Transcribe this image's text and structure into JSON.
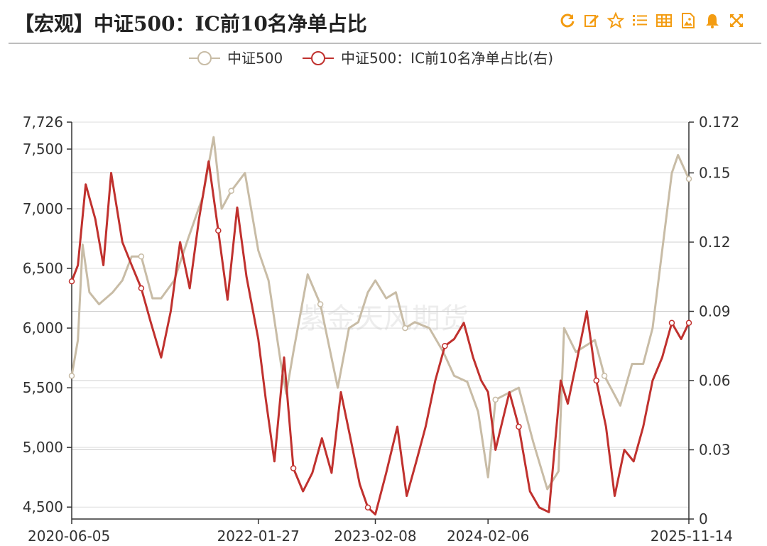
{
  "header": {
    "title": "【宏观】中证500：IC前10名净单占比",
    "toolbar": [
      {
        "name": "refresh-icon",
        "color": "#f39c12"
      },
      {
        "name": "edit-icon",
        "color": "#f39c12"
      },
      {
        "name": "star-icon",
        "color": "#f39c12"
      },
      {
        "name": "list-icon",
        "color": "#f39c12"
      },
      {
        "name": "table-icon",
        "color": "#f39c12"
      },
      {
        "name": "image-icon",
        "color": "#f39c12"
      },
      {
        "name": "bell-icon",
        "color": "#f39c12"
      },
      {
        "name": "fullscreen-icon",
        "color": "#f39c12"
      }
    ]
  },
  "watermark": "紫金天风期货",
  "chart_data": {
    "type": "line",
    "x_ticks": [
      "2020-06-05",
      "2022-01-27",
      "2023-02-08",
      "2024-02-06",
      "2025-11-14"
    ],
    "x_range": [
      "2020-06-05",
      "2025-11-14"
    ],
    "y_left": {
      "min": 4400,
      "max": 7726,
      "ticks": [
        "4,500",
        "5,000",
        "5,500",
        "6,000",
        "6,500",
        "7,000",
        "7,500",
        "7,726"
      ],
      "tick_values": [
        4500,
        5000,
        5500,
        6000,
        6500,
        7000,
        7500,
        7726
      ]
    },
    "y_right": {
      "min": 0,
      "max": 0.172,
      "ticks": [
        "0",
        "0.03",
        "0.06",
        "0.09",
        "0.12",
        "0.15",
        "0.172"
      ],
      "tick_values": [
        0,
        0.03,
        0.06,
        0.09,
        0.12,
        0.15,
        0.172
      ]
    },
    "grid": true,
    "legend_position": "top-center",
    "series": [
      {
        "name": "中证500",
        "axis": "left",
        "color": "#c8bca6",
        "points": [
          [
            "2020-06-05",
            5600
          ],
          [
            "2020-06-25",
            5900
          ],
          [
            "2020-07-10",
            6700
          ],
          [
            "2020-08-01",
            6300
          ],
          [
            "2020-09-01",
            6200
          ],
          [
            "2020-10-15",
            6300
          ],
          [
            "2020-11-15",
            6400
          ],
          [
            "2020-12-15",
            6600
          ],
          [
            "2021-01-15",
            6600
          ],
          [
            "2021-02-20",
            6250
          ],
          [
            "2021-03-20",
            6250
          ],
          [
            "2021-05-01",
            6400
          ],
          [
            "2021-06-15",
            6750
          ],
          [
            "2021-08-01",
            7100
          ],
          [
            "2021-09-05",
            7600
          ],
          [
            "2021-10-01",
            7000
          ],
          [
            "2021-11-01",
            7150
          ],
          [
            "2021-12-15",
            7300
          ],
          [
            "2022-01-27",
            6650
          ],
          [
            "2022-03-01",
            6400
          ],
          [
            "2022-04-10",
            5700
          ],
          [
            "2022-04-27",
            5450
          ],
          [
            "2022-05-20",
            5800
          ],
          [
            "2022-07-05",
            6450
          ],
          [
            "2022-08-15",
            6200
          ],
          [
            "2022-10-10",
            5500
          ],
          [
            "2022-11-15",
            6000
          ],
          [
            "2022-12-15",
            6050
          ],
          [
            "2023-01-15",
            6300
          ],
          [
            "2023-02-08",
            6400
          ],
          [
            "2023-03-15",
            6250
          ],
          [
            "2023-04-15",
            6300
          ],
          [
            "2023-05-15",
            6000
          ],
          [
            "2023-06-15",
            6050
          ],
          [
            "2023-08-01",
            6000
          ],
          [
            "2023-09-15",
            5800
          ],
          [
            "2023-10-20",
            5600
          ],
          [
            "2023-12-01",
            5550
          ],
          [
            "2024-01-05",
            5300
          ],
          [
            "2024-02-06",
            4750
          ],
          [
            "2024-03-01",
            5400
          ],
          [
            "2024-05-15",
            5500
          ],
          [
            "2024-06-30",
            5050
          ],
          [
            "2024-08-15",
            4650
          ],
          [
            "2024-09-20",
            4800
          ],
          [
            "2024-10-08",
            6000
          ],
          [
            "2024-11-15",
            5800
          ],
          [
            "2025-01-15",
            5900
          ],
          [
            "2025-02-15",
            5600
          ],
          [
            "2025-04-07",
            5350
          ],
          [
            "2025-05-15",
            5700
          ],
          [
            "2025-06-20",
            5700
          ],
          [
            "2025-07-20",
            6000
          ],
          [
            "2025-08-20",
            6650
          ],
          [
            "2025-09-20",
            7300
          ],
          [
            "2025-10-10",
            7450
          ],
          [
            "2025-11-14",
            7250
          ]
        ]
      },
      {
        "name": "中证500：IC前10名净单占比(右)",
        "axis": "right",
        "color": "#c0312e",
        "points": [
          [
            "2020-06-05",
            0.103
          ],
          [
            "2020-06-25",
            0.11
          ],
          [
            "2020-07-20",
            0.145
          ],
          [
            "2020-08-20",
            0.13
          ],
          [
            "2020-09-15",
            0.11
          ],
          [
            "2020-10-10",
            0.15
          ],
          [
            "2020-11-15",
            0.12
          ],
          [
            "2020-12-15",
            0.11
          ],
          [
            "2021-01-15",
            0.1
          ],
          [
            "2021-02-15",
            0.085
          ],
          [
            "2021-03-20",
            0.07
          ],
          [
            "2021-04-20",
            0.09
          ],
          [
            "2021-05-20",
            0.12
          ],
          [
            "2021-06-20",
            0.1
          ],
          [
            "2021-07-20",
            0.13
          ],
          [
            "2021-08-20",
            0.155
          ],
          [
            "2021-09-20",
            0.125
          ],
          [
            "2021-10-20",
            0.095
          ],
          [
            "2021-11-20",
            0.135
          ],
          [
            "2021-12-20",
            0.105
          ],
          [
            "2022-01-27",
            0.078
          ],
          [
            "2022-02-20",
            0.052
          ],
          [
            "2022-03-20",
            0.025
          ],
          [
            "2022-04-20",
            0.07
          ],
          [
            "2022-05-20",
            0.022
          ],
          [
            "2022-06-20",
            0.012
          ],
          [
            "2022-07-20",
            0.02
          ],
          [
            "2022-08-20",
            0.035
          ],
          [
            "2022-09-20",
            0.02
          ],
          [
            "2022-10-20",
            0.055
          ],
          [
            "2022-11-20",
            0.035
          ],
          [
            "2022-12-20",
            0.015
          ],
          [
            "2023-01-15",
            0.005
          ],
          [
            "2023-02-08",
            0.002
          ],
          [
            "2023-03-15",
            0.02
          ],
          [
            "2023-04-20",
            0.04
          ],
          [
            "2023-05-20",
            0.01
          ],
          [
            "2023-06-20",
            0.025
          ],
          [
            "2023-07-20",
            0.04
          ],
          [
            "2023-08-20",
            0.06
          ],
          [
            "2023-09-20",
            0.075
          ],
          [
            "2023-10-20",
            0.078
          ],
          [
            "2023-11-20",
            0.085
          ],
          [
            "2023-12-20",
            0.07
          ],
          [
            "2024-01-15",
            0.06
          ],
          [
            "2024-02-06",
            0.055
          ],
          [
            "2024-03-01",
            0.03
          ],
          [
            "2024-04-15",
            0.055
          ],
          [
            "2024-05-15",
            0.04
          ],
          [
            "2024-06-20",
            0.012
          ],
          [
            "2024-07-20",
            0.005
          ],
          [
            "2024-08-20",
            0.003
          ],
          [
            "2024-09-27",
            0.06
          ],
          [
            "2024-10-20",
            0.05
          ],
          [
            "2024-11-20",
            0.07
          ],
          [
            "2024-12-20",
            0.09
          ],
          [
            "2025-01-20",
            0.06
          ],
          [
            "2025-02-20",
            0.04
          ],
          [
            "2025-03-20",
            0.01
          ],
          [
            "2025-04-20",
            0.03
          ],
          [
            "2025-05-20",
            0.025
          ],
          [
            "2025-06-20",
            0.04
          ],
          [
            "2025-07-20",
            0.06
          ],
          [
            "2025-08-20",
            0.07
          ],
          [
            "2025-09-20",
            0.085
          ],
          [
            "2025-10-20",
            0.078
          ],
          [
            "2025-11-14",
            0.085
          ]
        ]
      }
    ]
  }
}
